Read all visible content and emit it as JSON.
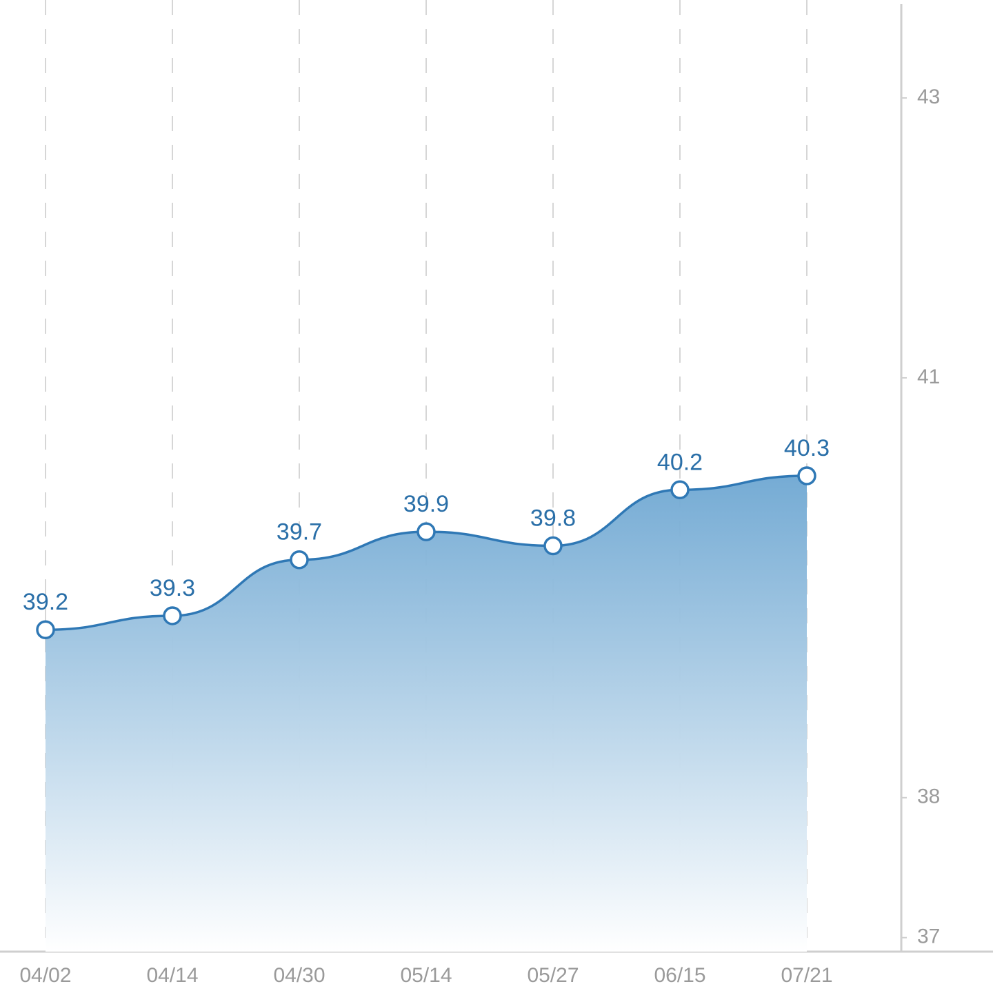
{
  "chart_data": {
    "type": "area",
    "categories": [
      "04/02",
      "04/14",
      "04/30",
      "05/14",
      "05/27",
      "06/15",
      "07/21"
    ],
    "values": [
      39.2,
      39.3,
      39.7,
      39.9,
      39.8,
      40.2,
      40.3
    ],
    "color": "#2f78b5",
    "ylim": [
      36.9,
      43.7
    ],
    "yticks": [
      37,
      38,
      41,
      43
    ],
    "grid": true
  }
}
